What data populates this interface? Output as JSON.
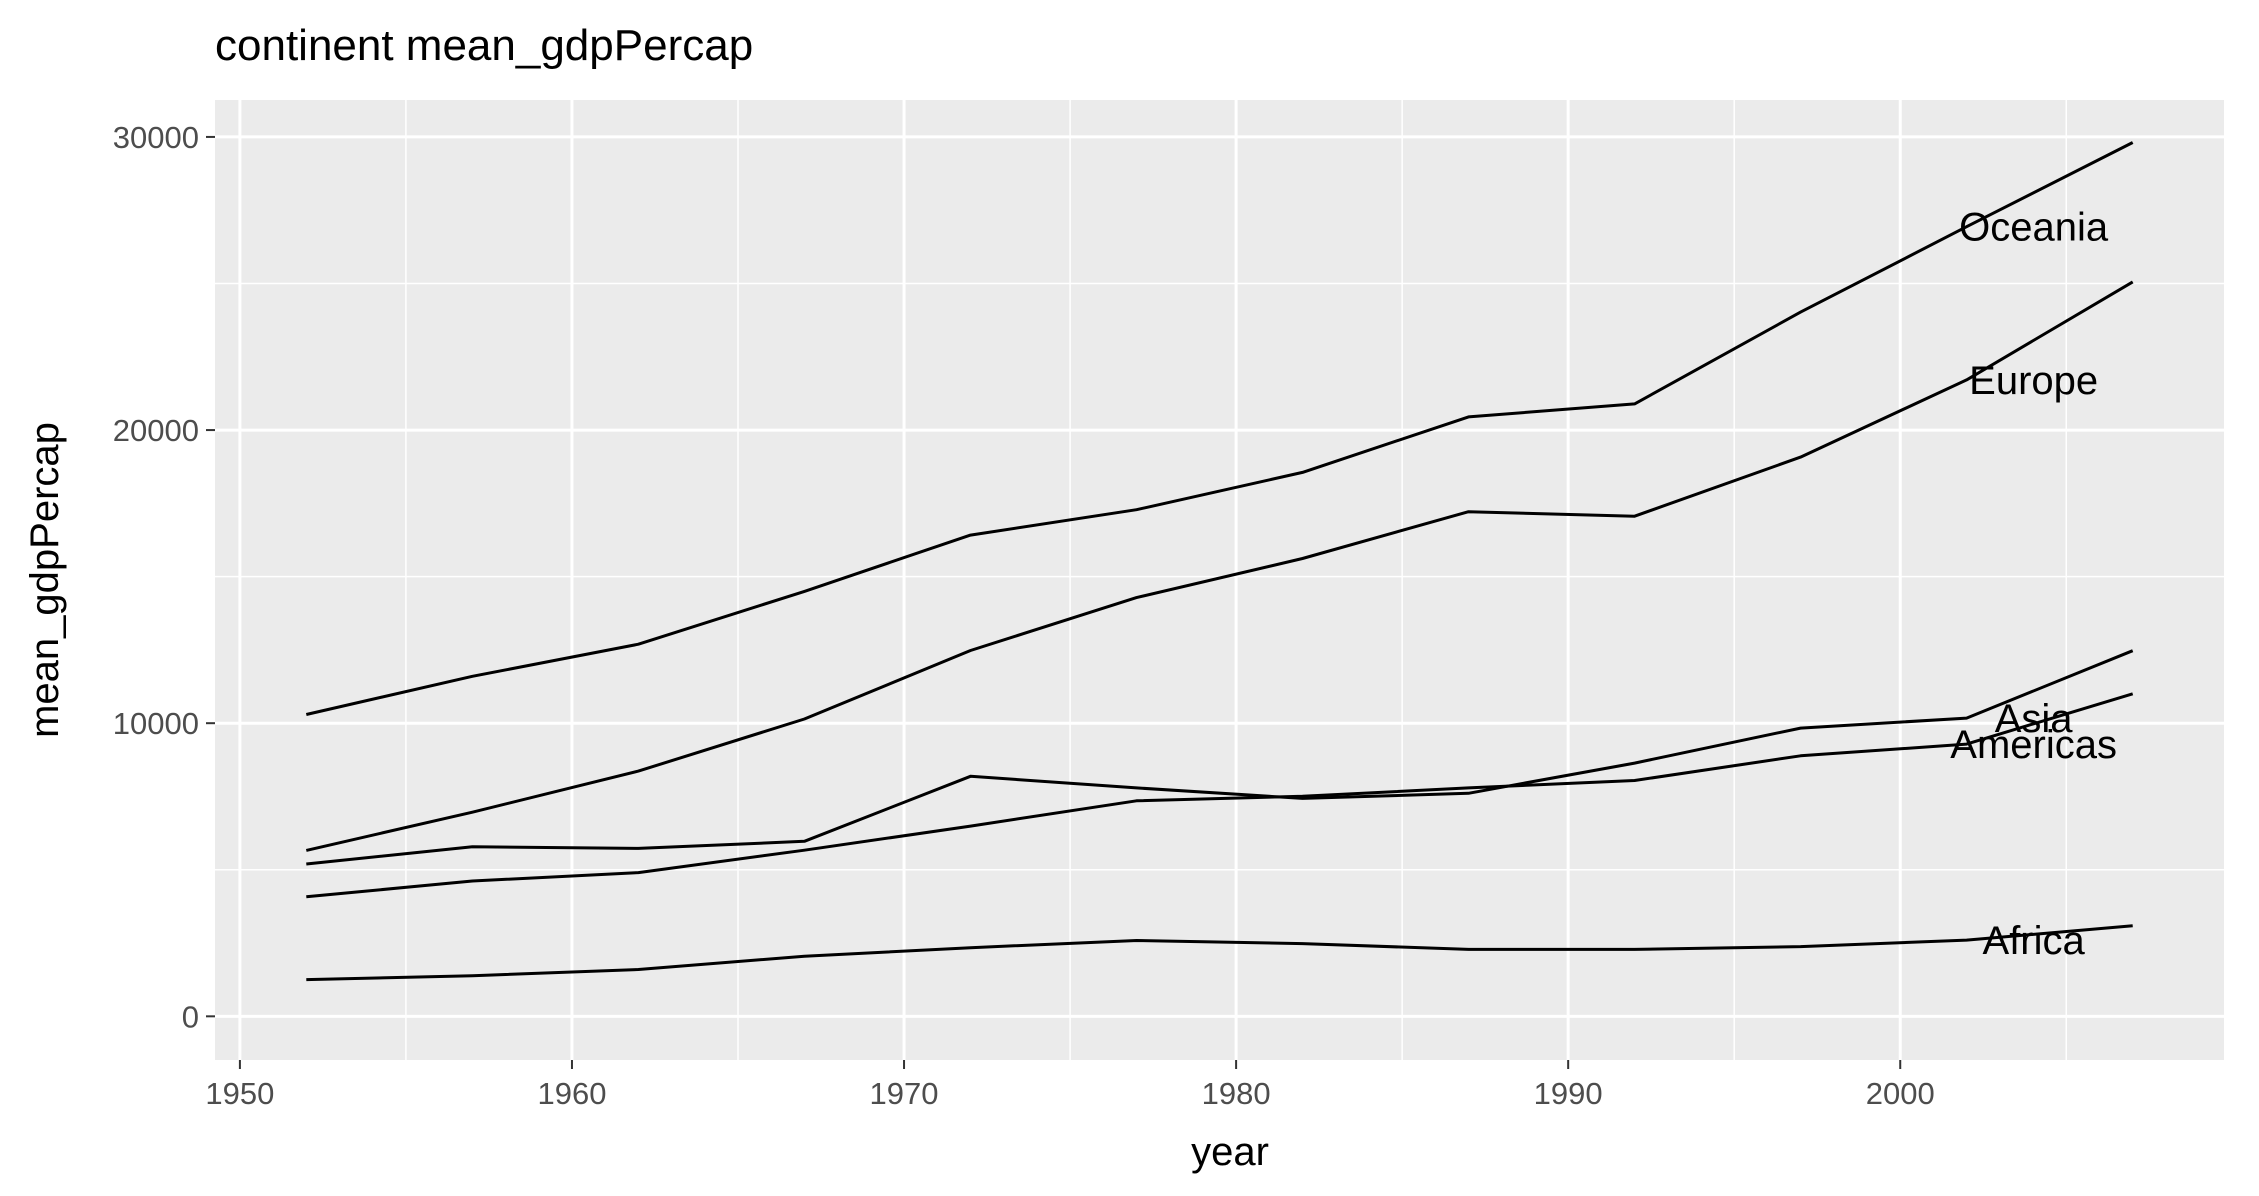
{
  "chart_data": {
    "type": "line",
    "title": "continent mean_gdpPercap",
    "xlabel": "year",
    "ylabel": "mean_gdpPercap",
    "xlim": [
      1949.25,
      2009.75
    ],
    "ylim": [
      -1490,
      31260
    ],
    "x_ticks": [
      1950,
      1960,
      1970,
      1980,
      1990,
      2000
    ],
    "y_ticks": [
      0,
      10000,
      20000,
      30000
    ],
    "x_tick_labels": [
      "1950",
      "1960",
      "1970",
      "1980",
      "1990",
      "2000"
    ],
    "y_tick_labels": [
      "0",
      "10000",
      "20000",
      "30000"
    ],
    "grid": true,
    "legend": "none",
    "colors": {
      "panel": "#ebebeb",
      "grid": "#ffffff",
      "line": "#000000",
      "tick_text": "#4d4d4d"
    },
    "x": [
      1952,
      1957,
      1962,
      1967,
      1972,
      1977,
      1982,
      1987,
      1992,
      1997,
      2002,
      2007
    ],
    "series": [
      {
        "name": "Oceania",
        "values": [
          10298,
          11599,
          12696,
          14495,
          16417,
          17284,
          18555,
          20448,
          20894,
          24024,
          26939,
          29810
        ]
      },
      {
        "name": "Europe",
        "values": [
          5661,
          6963,
          8365,
          10144,
          12480,
          14284,
          15618,
          17214,
          17062,
          19077,
          21712,
          25054
        ]
      },
      {
        "name": "Asia",
        "values": [
          5195,
          5788,
          5729,
          5971,
          8187,
          7791,
          7434,
          7608,
          8640,
          9834,
          10174,
          12473
        ]
      },
      {
        "name": "Americas",
        "values": [
          4079,
          4616,
          4902,
          5668,
          6491,
          7352,
          7507,
          7793,
          8045,
          8889,
          9288,
          11003
        ]
      },
      {
        "name": "Africa",
        "values": [
          1253,
          1385,
          1598,
          2050,
          2340,
          2586,
          2482,
          2283,
          2282,
          2379,
          2599,
          3089
        ]
      }
    ],
    "annotations": [
      {
        "text": "Oceania",
        "x": 2002,
        "y": 26939
      },
      {
        "text": "Europe",
        "x": 2002,
        "y": 21712
      },
      {
        "text": "Asia",
        "x": 2002,
        "y": 10174
      },
      {
        "text": "Americas",
        "x": 2002,
        "y": 9288
      },
      {
        "text": "Africa",
        "x": 2002,
        "y": 2599
      }
    ]
  }
}
